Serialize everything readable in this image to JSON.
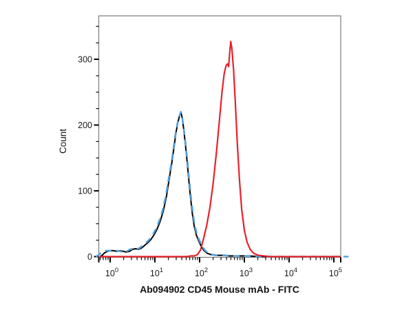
{
  "figure": {
    "background": "#ffffff",
    "frame_color": "#7a7a7a",
    "tick_color": "#000000",
    "text_color": "#1a1a1a"
  },
  "chart_data": {
    "type": "line",
    "subtype": "flow-cytometry-histogram",
    "title": "",
    "xlabel": "Ab094902 CD45 Mouse mAb - FITC",
    "ylabel": "Count",
    "x_scale": "log10",
    "x_log_range": [
      -0.254,
      5.154
    ],
    "ylim": [
      0,
      366
    ],
    "grid": false,
    "legend": "none",
    "x_major_ticks": [
      {
        "log": 0,
        "mantissa": "10",
        "exponent": "0"
      },
      {
        "log": 1,
        "mantissa": "10",
        "exponent": "1"
      },
      {
        "log": 2,
        "mantissa": "10",
        "exponent": "2"
      },
      {
        "log": 3,
        "mantissa": "10",
        "exponent": "3"
      },
      {
        "log": 4,
        "mantissa": "10",
        "exponent": "4"
      },
      {
        "log": 5,
        "mantissa": "10",
        "exponent": "5"
      }
    ],
    "x_minor_tick_decades": [
      -1,
      0,
      1,
      2,
      3,
      4
    ],
    "y_major_ticks": [
      {
        "value": 0,
        "label": "0"
      },
      {
        "value": 100,
        "label": "100"
      },
      {
        "value": 200,
        "label": "200"
      },
      {
        "value": 300,
        "label": "300"
      }
    ],
    "y_minor_step": 25,
    "series": [
      {
        "name": "unstained-control-black",
        "color": "#000000",
        "width": 2,
        "dash": null,
        "peak": {
          "x_log": 1.58,
          "count": 220
        },
        "points": [
          [
            -0.23,
            0
          ],
          [
            -0.18,
            2
          ],
          [
            -0.12,
            6
          ],
          [
            -0.06,
            8
          ],
          [
            0.0,
            9
          ],
          [
            0.08,
            9
          ],
          [
            0.15,
            8
          ],
          [
            0.22,
            9
          ],
          [
            0.29,
            8
          ],
          [
            0.36,
            7
          ],
          [
            0.43,
            8
          ],
          [
            0.5,
            11
          ],
          [
            0.57,
            12
          ],
          [
            0.63,
            11
          ],
          [
            0.7,
            13
          ],
          [
            0.77,
            17
          ],
          [
            0.84,
            21
          ],
          [
            0.91,
            26
          ],
          [
            0.98,
            33
          ],
          [
            1.05,
            42
          ],
          [
            1.12,
            54
          ],
          [
            1.19,
            70
          ],
          [
            1.26,
            92
          ],
          [
            1.32,
            118
          ],
          [
            1.38,
            143
          ],
          [
            1.43,
            168
          ],
          [
            1.47,
            188
          ],
          [
            1.51,
            203
          ],
          [
            1.55,
            214
          ],
          [
            1.58,
            220
          ],
          [
            1.61,
            211
          ],
          [
            1.64,
            196
          ],
          [
            1.68,
            172
          ],
          [
            1.72,
            145
          ],
          [
            1.76,
            115
          ],
          [
            1.8,
            88
          ],
          [
            1.84,
            64
          ],
          [
            1.88,
            46
          ],
          [
            1.93,
            32
          ],
          [
            1.98,
            24
          ],
          [
            2.04,
            15
          ],
          [
            2.1,
            9
          ],
          [
            2.17,
            5
          ],
          [
            2.25,
            3
          ],
          [
            2.35,
            2
          ],
          [
            2.5,
            2
          ],
          [
            2.65,
            1
          ],
          [
            2.85,
            1
          ],
          [
            3.1,
            1
          ],
          [
            3.35,
            0
          ],
          [
            4.2,
            0
          ],
          [
            5.15,
            0
          ]
        ]
      },
      {
        "name": "isotype-control-blue-dashed",
        "color": "#54a0dc",
        "width": 2.6,
        "dash": "9 7",
        "peak": {
          "x_log": 1.58,
          "count": 220
        },
        "points_ref": "unstained-control-black",
        "x_log_widen": [
          1.58,
          1.05
        ]
      },
      {
        "name": "cd45-mab-fitc-red",
        "color": "#e8202a",
        "width": 2.2,
        "dash": null,
        "peak": {
          "x_log": 2.695,
          "count": 327
        },
        "points": [
          [
            -0.23,
            0
          ],
          [
            0.3,
            0
          ],
          [
            0.8,
            0
          ],
          [
            1.2,
            0
          ],
          [
            1.5,
            0
          ],
          [
            1.72,
            0
          ],
          [
            1.8,
            1
          ],
          [
            1.88,
            1
          ],
          [
            1.95,
            3
          ],
          [
            2.02,
            10
          ],
          [
            2.09,
            28
          ],
          [
            2.16,
            48
          ],
          [
            2.23,
            75
          ],
          [
            2.3,
            110
          ],
          [
            2.37,
            155
          ],
          [
            2.44,
            205
          ],
          [
            2.5,
            250
          ],
          [
            2.55,
            278
          ],
          [
            2.59,
            290
          ],
          [
            2.62,
            293
          ],
          [
            2.65,
            289
          ],
          [
            2.67,
            307
          ],
          [
            2.695,
            327
          ],
          [
            2.72,
            317
          ],
          [
            2.76,
            283
          ],
          [
            2.8,
            232
          ],
          [
            2.84,
            175
          ],
          [
            2.89,
            118
          ],
          [
            2.94,
            72
          ],
          [
            3.0,
            40
          ],
          [
            3.06,
            22
          ],
          [
            3.13,
            11
          ],
          [
            3.21,
            5
          ],
          [
            3.31,
            2
          ],
          [
            3.43,
            1
          ],
          [
            3.58,
            0
          ],
          [
            4.0,
            0
          ],
          [
            4.6,
            0
          ],
          [
            5.15,
            0
          ]
        ]
      }
    ]
  }
}
